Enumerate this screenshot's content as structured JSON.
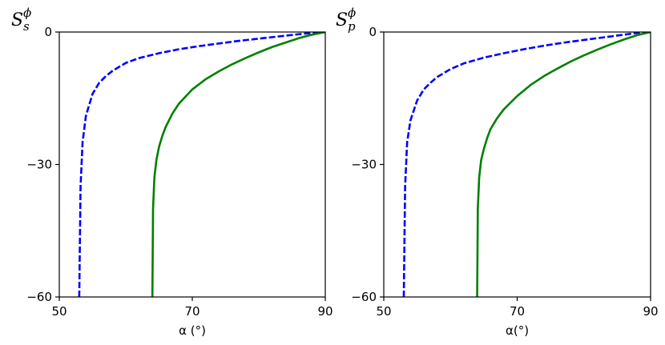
{
  "chart_data": [
    {
      "type": "line",
      "ylabel": {
        "main": "S",
        "sup": "ϕ",
        "sub": "s"
      },
      "xlabel": "α (°)",
      "xlim": [
        50,
        90
      ],
      "ylim": [
        -60,
        0
      ],
      "xticks": [
        50,
        70,
        90
      ],
      "xtick_labels": [
        "50",
        "70",
        "90"
      ],
      "yticks": [
        0,
        -30,
        -60
      ],
      "ytick_labels": [
        "0",
        "−30",
        "−60"
      ],
      "grid": false,
      "series": [
        {
          "style": "dashed",
          "color": "#0000ff",
          "x": [
            53.0,
            53.2,
            53.5,
            54.0,
            55.0,
            56.0,
            57.0,
            58.0,
            60.0,
            62.0,
            65.0,
            68.0,
            71.0,
            74.0,
            77.0,
            80.0,
            83.0,
            86.0,
            88.0,
            90.0
          ],
          "y": [
            -60.0,
            -35.0,
            -25.0,
            -19.0,
            -14.0,
            -11.5,
            -10.0,
            -8.8,
            -7.0,
            -5.9,
            -4.8,
            -3.9,
            -3.2,
            -2.6,
            -2.0,
            -1.5,
            -1.0,
            -0.5,
            -0.2,
            0.0
          ]
        },
        {
          "style": "solid",
          "color": "#008000",
          "x": [
            64.0,
            64.1,
            64.3,
            64.6,
            65.0,
            65.5,
            66.0,
            67.0,
            68.0,
            70.0,
            72.0,
            74.0,
            76.0,
            78.0,
            80.0,
            82.0,
            84.0,
            86.0,
            88.0,
            90.0
          ],
          "y": [
            -60.0,
            -40.0,
            -33.0,
            -29.0,
            -26.0,
            -23.5,
            -21.5,
            -18.5,
            -16.2,
            -13.0,
            -10.7,
            -8.9,
            -7.3,
            -5.9,
            -4.6,
            -3.4,
            -2.4,
            -1.4,
            -0.6,
            0.0
          ]
        }
      ]
    },
    {
      "type": "line",
      "ylabel": {
        "main": "S",
        "sup": "ϕ",
        "sub": "p"
      },
      "xlabel": "α(°)",
      "xlim": [
        50,
        90
      ],
      "ylim": [
        -60,
        0
      ],
      "xticks": [
        50,
        70,
        90
      ],
      "xtick_labels": [
        "50",
        "70",
        "90"
      ],
      "yticks": [
        0,
        -30,
        -60
      ],
      "ytick_labels": [
        "0",
        "−30",
        "−60"
      ],
      "grid": false,
      "series": [
        {
          "style": "dashed",
          "color": "#0000ff",
          "x": [
            53.0,
            53.2,
            53.5,
            54.0,
            55.0,
            56.0,
            57.0,
            58.0,
            60.0,
            62.0,
            65.0,
            68.0,
            71.0,
            74.0,
            77.0,
            80.0,
            83.0,
            86.0,
            88.0,
            90.0
          ],
          "y": [
            -60.0,
            -35.0,
            -25.0,
            -20.0,
            -15.5,
            -13.0,
            -11.5,
            -10.2,
            -8.4,
            -7.1,
            -5.8,
            -4.8,
            -3.9,
            -3.1,
            -2.4,
            -1.8,
            -1.2,
            -0.6,
            -0.2,
            0.0
          ]
        },
        {
          "style": "solid",
          "color": "#008000",
          "x": [
            64.0,
            64.1,
            64.3,
            64.6,
            65.0,
            65.5,
            66.0,
            67.0,
            68.0,
            70.0,
            72.0,
            74.0,
            76.0,
            78.0,
            80.0,
            82.0,
            84.0,
            86.0,
            88.0,
            90.0
          ],
          "y": [
            -60.0,
            -40.0,
            -33.0,
            -29.0,
            -26.5,
            -24.0,
            -22.0,
            -19.5,
            -17.5,
            -14.5,
            -12.0,
            -10.0,
            -8.3,
            -6.7,
            -5.3,
            -4.0,
            -2.8,
            -1.7,
            -0.7,
            0.0
          ]
        }
      ]
    }
  ]
}
